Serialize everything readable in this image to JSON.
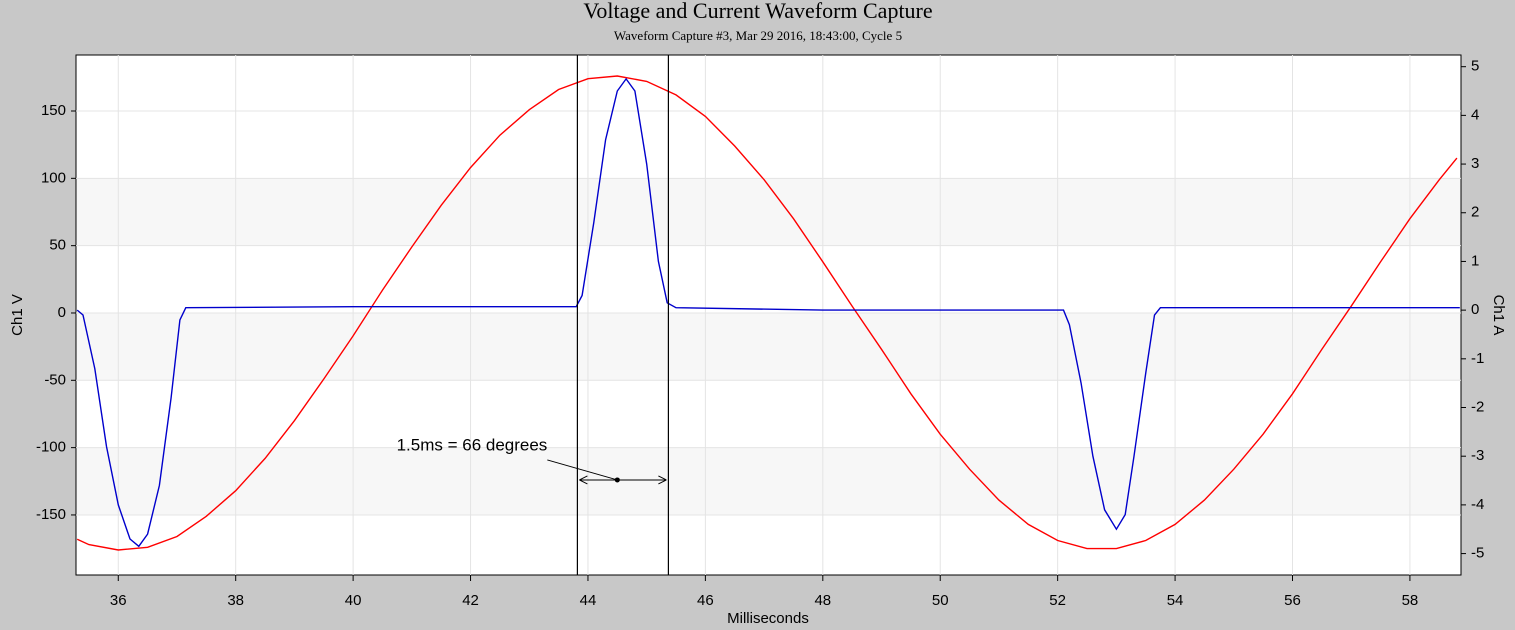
{
  "chart_data": {
    "type": "line",
    "title": "Voltage and Current Waveform Capture",
    "subtitle": "Waveform Capture #3, Mar 29 2016, 18:43:00,  Cycle 5",
    "x_label": "Milliseconds",
    "y_label": "Ch1 V",
    "y2_label": "Ch1 A",
    "xlim": [
      35.28,
      58.87
    ],
    "ylim": [
      -194.6,
      191.6
    ],
    "y2lim": [
      -5.44,
      5.24
    ],
    "xticks": [
      36,
      38,
      40,
      42,
      44,
      46,
      48,
      50,
      52,
      54,
      56,
      58
    ],
    "yticks": [
      -150,
      -100,
      -50,
      0,
      50,
      100,
      150
    ],
    "y2ticks": [
      -5,
      -4,
      -3,
      -2,
      -1,
      0,
      1,
      2,
      3,
      4,
      5
    ],
    "grid": true,
    "series": [
      {
        "color": "#ff0000",
        "x": [
          35.3,
          35.5,
          36,
          36.5,
          37,
          37.5,
          38,
          38.5,
          39,
          39.5,
          40,
          40.5,
          41,
          41.5,
          42,
          42.5,
          43,
          43.5,
          44,
          44.5,
          45,
          45.5,
          46,
          46.5,
          47,
          47.5,
          48,
          48.5,
          49,
          49.5,
          50,
          50.5,
          51,
          51.5,
          52,
          52.5,
          53,
          53.5,
          54,
          54.5,
          55,
          55.5,
          56,
          56.5,
          57,
          57.5,
          58,
          58.5,
          58.8
        ],
        "values": [
          -168,
          -172,
          -176,
          -174,
          -166,
          -151,
          -132,
          -108,
          -80,
          -49,
          -17,
          17,
          49,
          80,
          108,
          132,
          151,
          166,
          174,
          176,
          172,
          162,
          146,
          124,
          99,
          70,
          38,
          5,
          -27,
          -60,
          -90,
          -116,
          -139,
          -157,
          -169,
          -175,
          -175,
          -169,
          -157,
          -139,
          -116,
          -90,
          -60,
          -27,
          5,
          38,
          70,
          99,
          115
        ]
      },
      {
        "color": "#0000cc",
        "axis": "y2",
        "x": [
          35.3,
          35.4,
          35.6,
          35.8,
          36.0,
          36.2,
          36.35,
          36.5,
          36.7,
          36.9,
          37.05,
          37.15,
          40,
          43.8,
          43.9,
          44.1,
          44.3,
          44.5,
          44.65,
          44.8,
          45.0,
          45.2,
          45.35,
          45.5,
          48,
          52.1,
          52.2,
          52.4,
          52.6,
          52.8,
          53.0,
          53.15,
          53.3,
          53.5,
          53.65,
          53.75,
          58.85
        ],
        "values": [
          0.0,
          -0.1,
          -1.2,
          -2.8,
          -4.0,
          -4.7,
          -4.85,
          -4.6,
          -3.6,
          -1.8,
          -0.2,
          0.05,
          0.07,
          0.07,
          0.3,
          1.8,
          3.5,
          4.5,
          4.75,
          4.5,
          3.0,
          1.0,
          0.15,
          0.05,
          0.0,
          0.0,
          -0.3,
          -1.5,
          -3.0,
          -4.1,
          -4.5,
          -4.2,
          -3.0,
          -1.3,
          -0.1,
          0.05,
          0.05
        ]
      }
    ],
    "cursors": [
      43.82,
      45.37
    ],
    "annotation": {
      "text": "1.5ms = 66 degrees",
      "x": 44.5,
      "y": -124
    }
  }
}
